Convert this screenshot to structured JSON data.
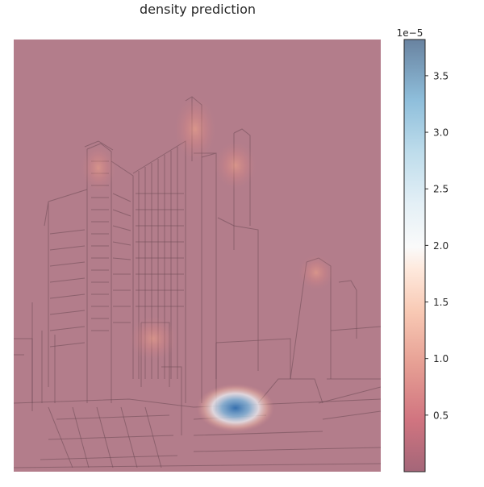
{
  "chart_data": {
    "type": "heatmap",
    "title": "density prediction",
    "colormap": "RdBu",
    "colorbar": {
      "scale_label": "1e−5",
      "ticks": [
        {
          "value": 0.5,
          "label": "0.5"
        },
        {
          "value": 1.0,
          "label": "1.0"
        },
        {
          "value": 1.5,
          "label": "1.5"
        },
        {
          "value": 2.0,
          "label": "2.0"
        },
        {
          "value": 2.5,
          "label": "2.5"
        },
        {
          "value": 3.0,
          "label": "3.0"
        },
        {
          "value": 3.5,
          "label": "3.5"
        }
      ],
      "vmin": 0.0,
      "vmax": 3.82
    },
    "background_image": "architectural-building-sketch",
    "axes_visible": false,
    "density_hotspots": [
      {
        "peak": 3.8,
        "label": "main-peak"
      },
      {
        "peak": 1.15,
        "label": "tower-top-center"
      },
      {
        "peak": 1.1,
        "label": "tower-top-right"
      },
      {
        "peak": 1.05,
        "label": "right-tower"
      },
      {
        "peak": 0.95,
        "label": "left-tower"
      },
      {
        "peak": 0.9,
        "label": "center-mid"
      }
    ]
  }
}
